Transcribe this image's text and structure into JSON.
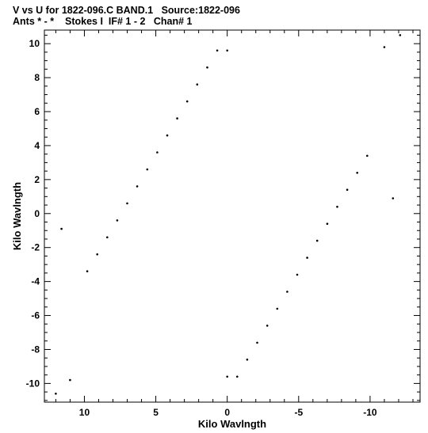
{
  "header": {
    "line1": "V vs U for 1822-096.C BAND.1   Source:1822-096",
    "line2": "Ants * - *    Stokes I  IF# 1 - 2   Chan# 1"
  },
  "chart_data": {
    "type": "scatter",
    "title": "V vs U for 1822-096.C BAND.1   Source:1822-096",
    "subtitle": "Ants * - *    Stokes I  IF# 1 - 2   Chan# 1",
    "xlabel": "Kilo Wavlngth",
    "ylabel": "Kilo Wavlngth",
    "xlim": [
      12.8,
      -13.5
    ],
    "ylim": [
      -11.1,
      10.8
    ],
    "x_ticks": [
      10,
      5,
      0,
      -5,
      -10
    ],
    "x_tick_labels": [
      "10",
      "5",
      "0",
      "-5",
      "-10"
    ],
    "y_ticks": [
      10,
      8,
      6,
      4,
      2,
      0,
      -2,
      -4,
      -6,
      -8,
      -10
    ],
    "y_tick_labels": [
      "10",
      "8",
      "6",
      "4",
      "2",
      "0",
      "-2",
      "-4",
      "-6",
      "-8",
      "-10"
    ],
    "grid": false,
    "legend": "none",
    "marker": "small black dot",
    "series": [
      {
        "name": "",
        "layout": "rotationally symmetric (u,v),(-u,-v) track pattern: six radial spokes through origin, dotted grid filling a parallelogram",
        "points": [
          [
            0.7,
            9.6
          ],
          [
            1.4,
            8.6
          ],
          [
            2.1,
            7.6
          ],
          [
            2.8,
            6.6
          ],
          [
            3.5,
            5.6
          ],
          [
            4.2,
            4.6
          ],
          [
            4.9,
            3.6
          ],
          [
            5.6,
            2.6
          ],
          [
            6.3,
            1.6
          ],
          [
            7.0,
            0.6
          ],
          [
            7.7,
            -0.4
          ],
          [
            8.4,
            -1.4
          ],
          [
            9.1,
            -2.4
          ],
          [
            9.8,
            -3.4
          ],
          [
            -0.7,
            -9.6
          ],
          [
            -1.4,
            -8.6
          ],
          [
            -2.1,
            -7.6
          ],
          [
            -2.8,
            -6.6
          ],
          [
            -3.5,
            -5.6
          ],
          [
            -4.2,
            -4.6
          ],
          [
            -4.9,
            -3.6
          ],
          [
            -5.6,
            -2.6
          ],
          [
            -6.3,
            -1.6
          ],
          [
            -7.0,
            -0.6
          ],
          [
            -7.7,
            0.4
          ],
          [
            -8.4,
            1.4
          ],
          [
            -9.1,
            2.4
          ],
          [
            -9.8,
            3.4
          ],
          [
            -12.1,
            10.5
          ],
          [
            12.0,
            -10.6
          ],
          [
            11.6,
            -0.9
          ],
          [
            -11.6,
            0.9
          ],
          [
            11.0,
            -9.8
          ],
          [
            -11.0,
            9.8
          ],
          [
            0.0,
            9.6
          ],
          [
            0.0,
            -9.6
          ]
        ]
      }
    ]
  }
}
